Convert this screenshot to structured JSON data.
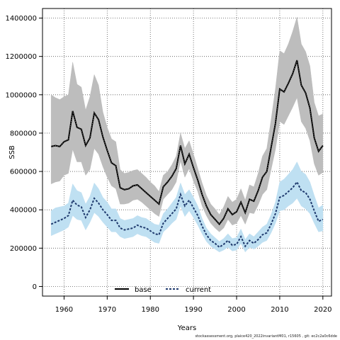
{
  "chart_data": {
    "type": "line",
    "xlabel": "Years",
    "ylabel": "SSB",
    "xlim": [
      1955,
      2022
    ],
    "ylim": [
      -50000,
      1450000
    ],
    "xticks": [
      1960,
      1970,
      1980,
      1990,
      2000,
      2010,
      2020
    ],
    "yticks": [
      0,
      200000,
      400000,
      600000,
      800000,
      1000000,
      1200000,
      1400000
    ],
    "grid": true,
    "legend_placement": "bottom-center",
    "x": [
      1957,
      1958,
      1959,
      1960,
      1961,
      1962,
      1963,
      1964,
      1965,
      1966,
      1967,
      1968,
      1969,
      1970,
      1971,
      1972,
      1973,
      1974,
      1975,
      1976,
      1977,
      1978,
      1979,
      1980,
      1981,
      1982,
      1983,
      1984,
      1985,
      1986,
      1987,
      1988,
      1989,
      1990,
      1991,
      1992,
      1993,
      1994,
      1995,
      1996,
      1997,
      1998,
      1999,
      2000,
      2001,
      2002,
      2003,
      2004,
      2005,
      2006,
      2007,
      2008,
      2009,
      2010,
      2011,
      2012,
      2013,
      2014,
      2015,
      2016,
      2017,
      2018,
      2019,
      2020
    ],
    "series": [
      {
        "name": "base",
        "color": "#000000",
        "band_color": "#bdbdbd",
        "values": [
          730000,
          735000,
          730000,
          755000,
          765000,
          915000,
          830000,
          820000,
          735000,
          775000,
          905000,
          870000,
          780000,
          710000,
          645000,
          630000,
          515000,
          505000,
          510000,
          525000,
          530000,
          510000,
          490000,
          470000,
          450000,
          430000,
          520000,
          545000,
          575000,
          615000,
          735000,
          640000,
          690000,
          620000,
          555000,
          480000,
          420000,
          375000,
          350000,
          325000,
          355000,
          405000,
          375000,
          390000,
          440000,
          385000,
          455000,
          445000,
          500000,
          570000,
          600000,
          725000,
          850000,
          1030000,
          1015000,
          1060000,
          1110000,
          1180000,
          1050000,
          1010000,
          930000,
          775000,
          705000,
          735000
        ],
        "upper": [
          1000000,
          985000,
          975000,
          990000,
          1000000,
          1170000,
          1055000,
          1040000,
          920000,
          990000,
          1105000,
          1050000,
          910000,
          830000,
          770000,
          755000,
          610000,
          590000,
          595000,
          605000,
          610000,
          590000,
          570000,
          545000,
          525000,
          495000,
          580000,
          600000,
          635000,
          680000,
          800000,
          720000,
          760000,
          690000,
          615000,
          540000,
          475000,
          430000,
          405000,
          375000,
          415000,
          470000,
          440000,
          455000,
          510000,
          450000,
          530000,
          520000,
          590000,
          680000,
          720000,
          870000,
          1030000,
          1230000,
          1215000,
          1265000,
          1330000,
          1405000,
          1265000,
          1225000,
          1150000,
          960000,
          890000,
          900000
        ],
        "lower": [
          535000,
          545000,
          550000,
          580000,
          590000,
          715000,
          650000,
          650000,
          580000,
          610000,
          720000,
          690000,
          625000,
          570000,
          525000,
          510000,
          430000,
          430000,
          435000,
          450000,
          455000,
          440000,
          420000,
          400000,
          380000,
          365000,
          455000,
          480000,
          505000,
          545000,
          655000,
          570000,
          615000,
          550000,
          495000,
          420000,
          370000,
          330000,
          305000,
          285000,
          305000,
          350000,
          320000,
          330000,
          370000,
          325000,
          385000,
          380000,
          425000,
          480000,
          505000,
          610000,
          715000,
          860000,
          845000,
          890000,
          935000,
          985000,
          860000,
          825000,
          760000,
          640000,
          580000,
          595000
        ]
      },
      {
        "name": "current",
        "color": "#1f3a6e",
        "band_color": "#bfe0f2",
        "values": [
          325000,
          335000,
          345000,
          355000,
          370000,
          450000,
          425000,
          415000,
          360000,
          400000,
          460000,
          435000,
          400000,
          375000,
          345000,
          345000,
          305000,
          295000,
          300000,
          305000,
          320000,
          310000,
          305000,
          290000,
          275000,
          270000,
          330000,
          355000,
          380000,
          405000,
          480000,
          420000,
          450000,
          410000,
          370000,
          315000,
          270000,
          240000,
          225000,
          205000,
          220000,
          240000,
          215000,
          220000,
          260000,
          210000,
          240000,
          225000,
          245000,
          270000,
          280000,
          325000,
          380000,
          465000,
          475000,
          495000,
          515000,
          545000,
          500000,
          490000,
          455000,
          395000,
          340000,
          350000
        ],
        "upper": [
          395000,
          410000,
          415000,
          420000,
          435000,
          535000,
          500000,
          490000,
          430000,
          470000,
          540000,
          510000,
          465000,
          440000,
          405000,
          405000,
          355000,
          345000,
          350000,
          355000,
          370000,
          360000,
          355000,
          340000,
          325000,
          320000,
          380000,
          405000,
          435000,
          465000,
          540000,
          480000,
          505000,
          465000,
          420000,
          355000,
          305000,
          275000,
          255000,
          235000,
          250000,
          275000,
          250000,
          255000,
          300000,
          245000,
          275000,
          260000,
          285000,
          310000,
          325000,
          375000,
          440000,
          545000,
          560000,
          585000,
          610000,
          650000,
          600000,
          585000,
          545000,
          475000,
          410000,
          425000
        ],
        "lower": [
          265000,
          275000,
          285000,
          295000,
          310000,
          370000,
          350000,
          345000,
          295000,
          335000,
          385000,
          365000,
          335000,
          310000,
          285000,
          285000,
          260000,
          250000,
          255000,
          260000,
          275000,
          265000,
          260000,
          245000,
          230000,
          225000,
          285000,
          305000,
          330000,
          350000,
          420000,
          365000,
          395000,
          360000,
          320000,
          275000,
          235000,
          210000,
          195000,
          180000,
          190000,
          205000,
          185000,
          190000,
          225000,
          180000,
          205000,
          195000,
          210000,
          230000,
          240000,
          280000,
          330000,
          395000,
          400000,
          420000,
          435000,
          460000,
          420000,
          405000,
          380000,
          330000,
          285000,
          290000
        ]
      }
    ]
  },
  "footer": {
    "text": "stockassessment.org, plaice420_2022invariantM01, r15605 , git: ec2c2a0c6dde"
  }
}
